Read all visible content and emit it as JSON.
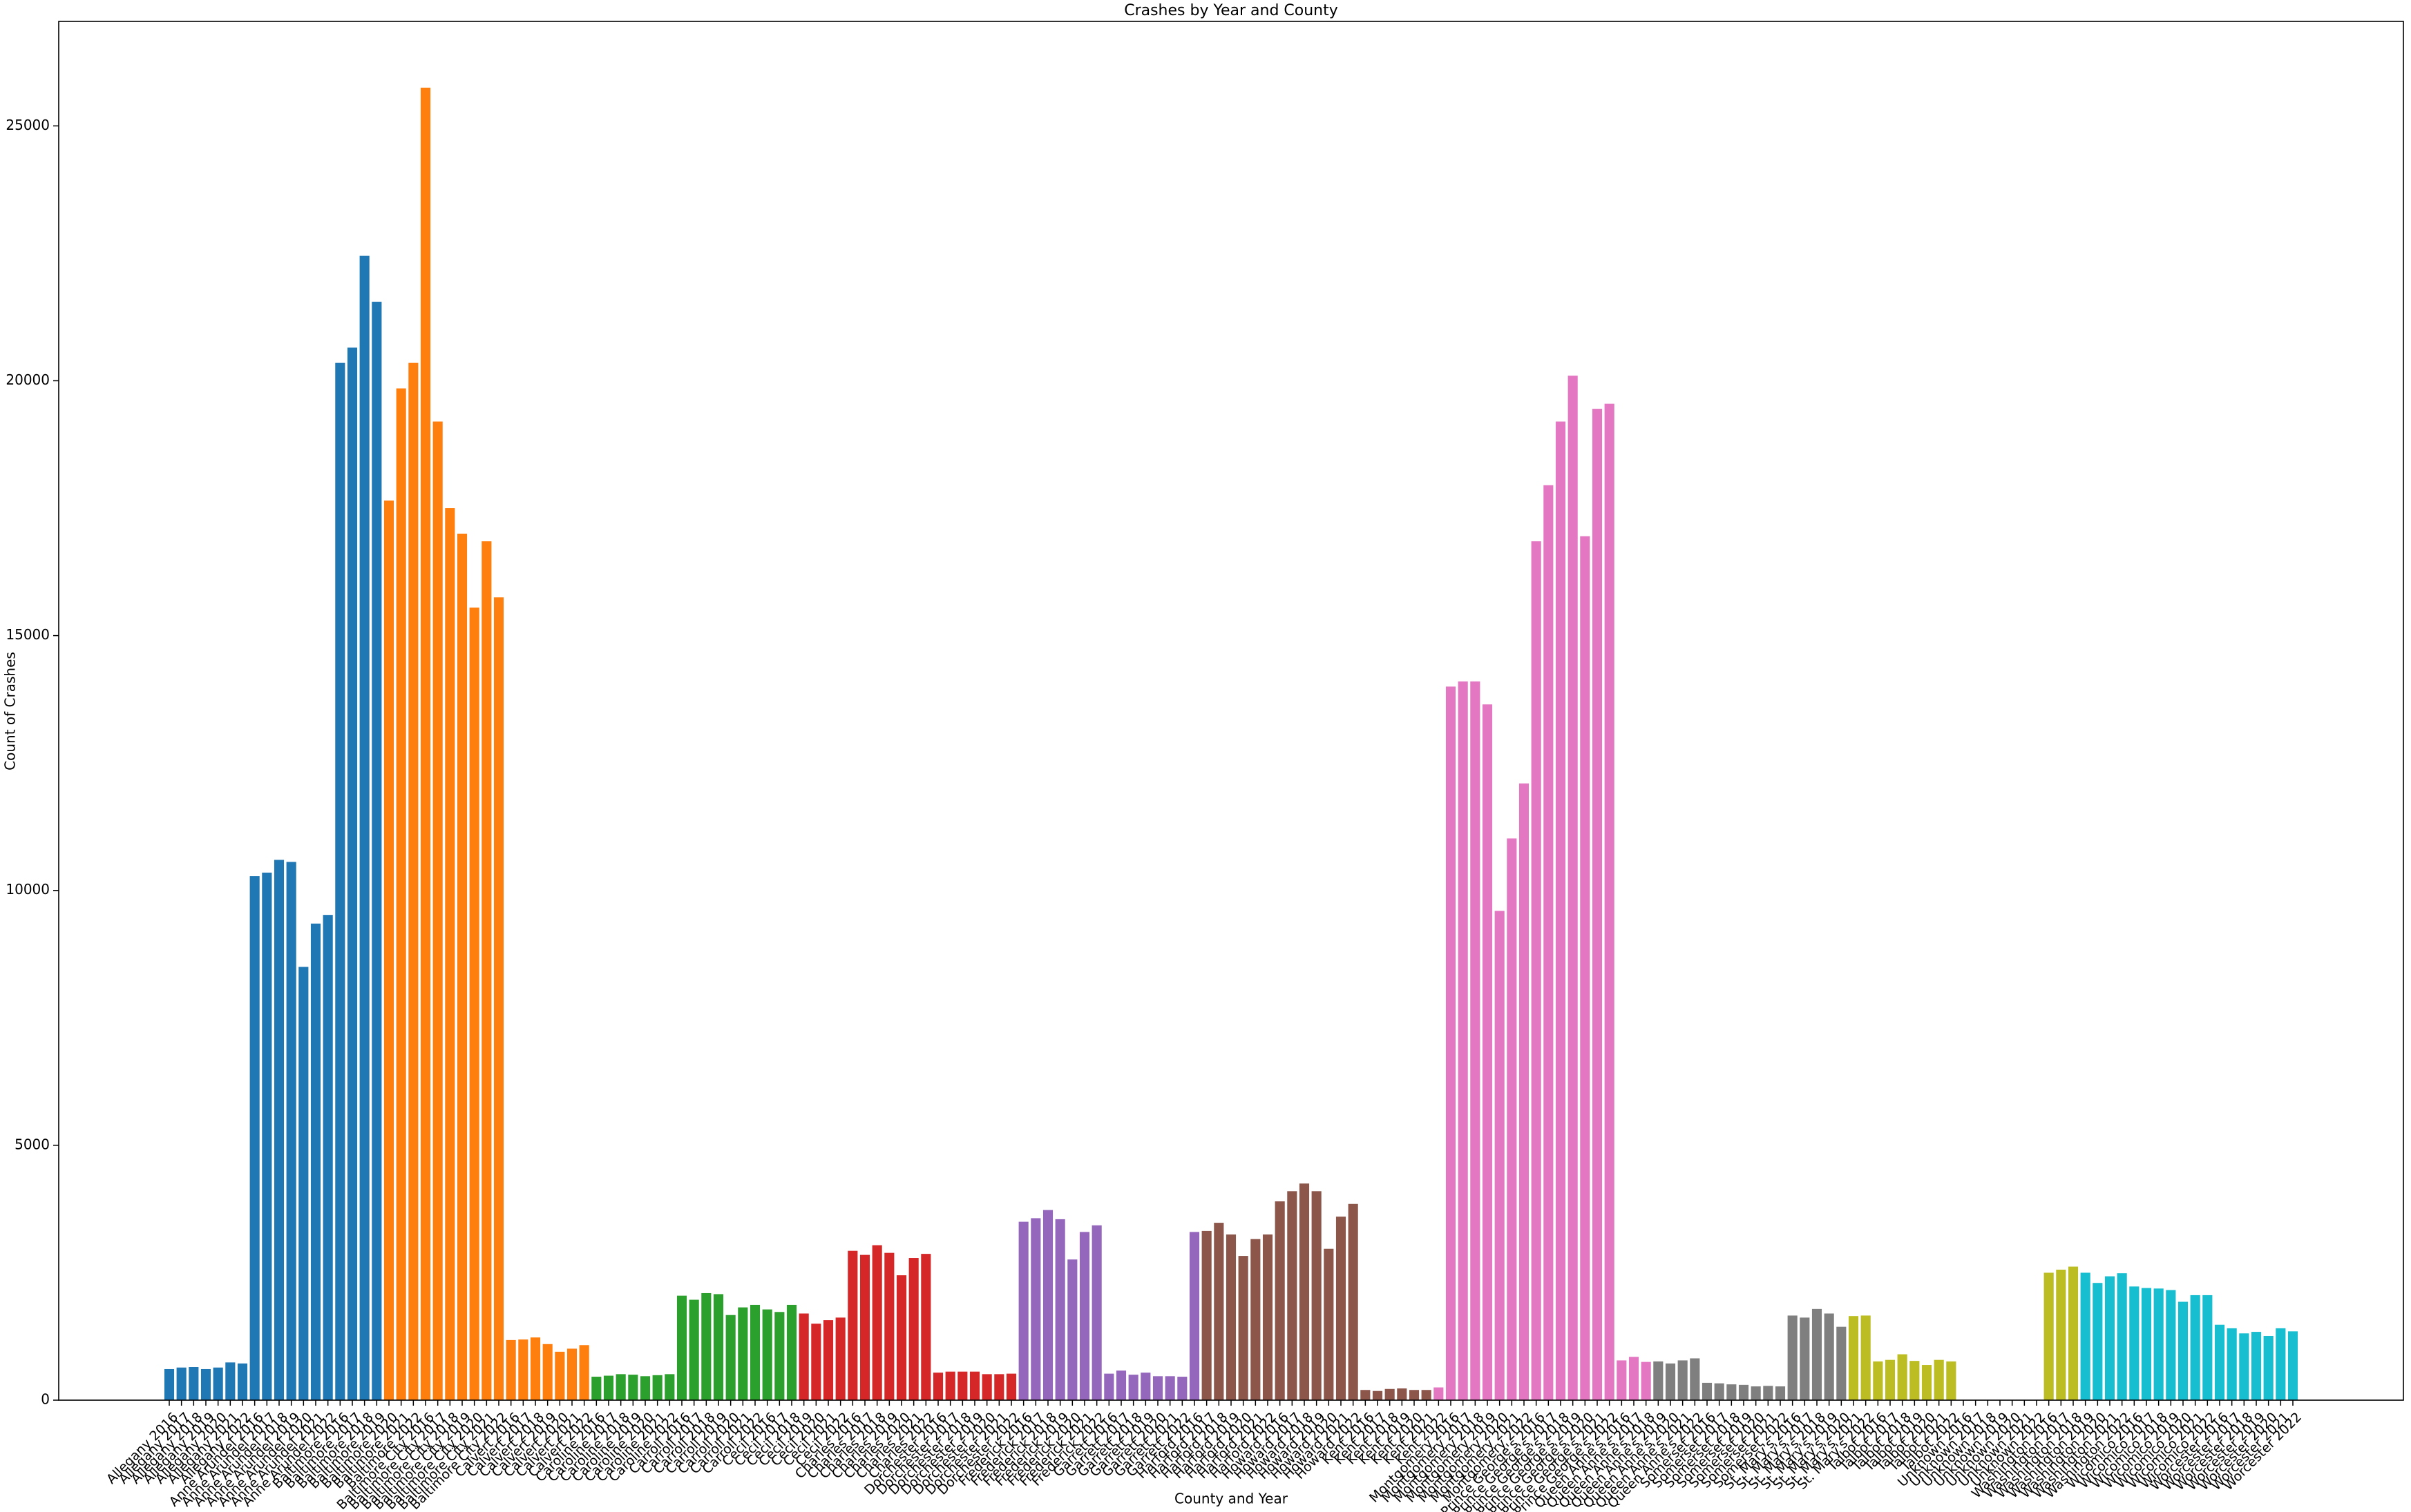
{
  "chart_data": {
    "type": "bar",
    "title": "Crashes by Year and County",
    "xlabel": "County and Year",
    "ylabel": "Count of Crashes",
    "categories": [
      "Allegany 2016",
      "Allegany 2017",
      "Allegany 2018",
      "Allegany 2019",
      "Allegany 2020",
      "Allegany 2021",
      "Allegany 2022",
      "Anne Arundel 2016",
      "Anne Arundel 2017",
      "Anne Arundel 2018",
      "Anne Arundel 2019",
      "Anne Arundel 2020",
      "Anne Arundel 2021",
      "Anne Arundel 2022",
      "Baltimore 2016",
      "Baltimore 2017",
      "Baltimore 2018",
      "Baltimore 2019",
      "Baltimore 2020",
      "Baltimore 2021",
      "Baltimore 2022",
      "Baltimore City 2016",
      "Baltimore City 2017",
      "Baltimore City 2018",
      "Baltimore City 2019",
      "Baltimore City 2020",
      "Baltimore City 2021",
      "Baltimore City 2022",
      "Calvert 2016",
      "Calvert 2017",
      "Calvert 2018",
      "Calvert 2019",
      "Calvert 2020",
      "Calvert 2021",
      "Calvert 2022",
      "Caroline 2016",
      "Caroline 2017",
      "Caroline 2018",
      "Caroline 2019",
      "Caroline 2020",
      "Caroline 2021",
      "Caroline 2022",
      "Carroll 2016",
      "Carroll 2017",
      "Carroll 2018",
      "Carroll 2019",
      "Carroll 2020",
      "Carroll 2021",
      "Carroll 2022",
      "Cecil 2016",
      "Cecil 2017",
      "Cecil 2018",
      "Cecil 2019",
      "Cecil 2020",
      "Cecil 2021",
      "Cecil 2022",
      "Charles 2016",
      "Charles 2017",
      "Charles 2018",
      "Charles 2019",
      "Charles 2020",
      "Charles 2021",
      "Charles 2022",
      "Dorchester 2016",
      "Dorchester 2017",
      "Dorchester 2018",
      "Dorchester 2019",
      "Dorchester 2020",
      "Dorchester 2021",
      "Dorchester 2022",
      "Frederick 2016",
      "Frederick 2017",
      "Frederick 2018",
      "Frederick 2019",
      "Frederick 2020",
      "Frederick 2021",
      "Frederick 2022",
      "Garrett 2016",
      "Garrett 2017",
      "Garrett 2018",
      "Garrett 2019",
      "Garrett 2020",
      "Garrett 2021",
      "Garrett 2022",
      "Harford 2016",
      "Harford 2017",
      "Harford 2018",
      "Harford 2019",
      "Harford 2020",
      "Harford 2021",
      "Harford 2022",
      "Howard 2016",
      "Howard 2017",
      "Howard 2018",
      "Howard 2019",
      "Howard 2020",
      "Howard 2021",
      "Howard 2022",
      "Kent 2016",
      "Kent 2017",
      "Kent 2018",
      "Kent 2019",
      "Kent 2020",
      "Kent 2021",
      "Kent 2022",
      "Montgomery 2016",
      "Montgomery 2017",
      "Montgomery 2018",
      "Montgomery 2019",
      "Montgomery 2020",
      "Montgomery 2021",
      "Montgomery 2022",
      "Prince George's 2016",
      "Prince George's 2017",
      "Prince George's 2018",
      "Prince George's 2019",
      "Prince George's 2020",
      "Prince George's 2021",
      "Prince George's 2022",
      "Queen Anne's 2016",
      "Queen Anne's 2017",
      "Queen Anne's 2018",
      "Queen Anne's 2019",
      "Queen Anne's 2020",
      "Queen Anne's 2021",
      "Queen Anne's 2022",
      "Somerset 2016",
      "Somerset 2017",
      "Somerset 2018",
      "Somerset 2019",
      "Somerset 2020",
      "Somerset 2021",
      "Somerset 2022",
      "St. Mary's 2016",
      "St. Mary's 2017",
      "St. Mary's 2018",
      "St. Mary's 2019",
      "St. Mary's 2020",
      "St. Mary's 2021",
      "St. Mary's 2022",
      "Talbot 2016",
      "Talbot 2017",
      "Talbot 2018",
      "Talbot 2019",
      "Talbot 2020",
      "Talbot 2021",
      "Talbot 2022",
      "Unknown 2016",
      "Unknown 2017",
      "Unknown 2018",
      "Unknown 2019",
      "Unknown 2020",
      "Unknown 2021",
      "Unknown 2022",
      "Washington 2016",
      "Washington 2017",
      "Washington 2018",
      "Washington 2019",
      "Washington 2020",
      "Washington 2021",
      "Washington 2022",
      "Wicomico 2016",
      "Wicomico 2017",
      "Wicomico 2018",
      "Wicomico 2019",
      "Wicomico 2020",
      "Wicomico 2021",
      "Wicomico 2022",
      "Worcester 2016",
      "Worcester 2017",
      "Worcester 2018",
      "Worcester 2019",
      "Worcester 2020",
      "Worcester 2021",
      "Worcester 2022"
    ],
    "values": [
      610,
      640,
      650,
      610,
      640,
      740,
      720,
      10280,
      10350,
      10600,
      10560,
      8500,
      9350,
      9520,
      20350,
      20650,
      22450,
      21550,
      17650,
      19850,
      20350,
      25750,
      19200,
      17500,
      17000,
      15550,
      16850,
      15750,
      1180,
      1190,
      1230,
      1100,
      950,
      1010,
      1080,
      460,
      480,
      510,
      500,
      470,
      490,
      510,
      2050,
      1970,
      2100,
      2080,
      1670,
      1820,
      1870,
      1780,
      1730,
      1870,
      1700,
      1500,
      1570,
      1620,
      2930,
      2850,
      3040,
      2890,
      2450,
      2790,
      2870,
      540,
      560,
      560,
      560,
      510,
      510,
      520,
      3500,
      3570,
      3730,
      3550,
      2760,
      3300,
      3430,
      520,
      580,
      500,
      540,
      470,
      470,
      460,
      3300,
      3320,
      3480,
      3250,
      2830,
      3160,
      3250,
      3900,
      4100,
      4250,
      4100,
      2970,
      3600,
      3850,
      200,
      180,
      220,
      230,
      200,
      200,
      250,
      14000,
      14100,
      14100,
      13650,
      9600,
      11020,
      12100,
      16850,
      17950,
      19200,
      20100,
      16950,
      19450,
      19550,
      780,
      850,
      750,
      760,
      720,
      780,
      820,
      340,
      330,
      310,
      300,
      270,
      280,
      270,
      1660,
      1620,
      1790,
      1700,
      1440,
      1650,
      1660,
      760,
      790,
      900,
      770,
      690,
      790,
      760,
      0,
      0,
      0,
      0,
      0,
      0,
      0,
      2500,
      2560,
      2620,
      2500,
      2300,
      2430,
      2490,
      2230,
      2200,
      2190,
      2160,
      1930,
      2060,
      2060,
      1480,
      1410,
      1310,
      1340,
      1260,
      1410,
      1350
    ],
    "colors": [
      "#1f77b4",
      "#1f77b4",
      "#1f77b4",
      "#1f77b4",
      "#1f77b4",
      "#1f77b4",
      "#1f77b4",
      "#1f77b4",
      "#1f77b4",
      "#1f77b4",
      "#1f77b4",
      "#1f77b4",
      "#1f77b4",
      "#1f77b4",
      "#1f77b4",
      "#1f77b4",
      "#1f77b4",
      "#1f77b4",
      "#ff7f0e",
      "#ff7f0e",
      "#ff7f0e",
      "#ff7f0e",
      "#ff7f0e",
      "#ff7f0e",
      "#ff7f0e",
      "#ff7f0e",
      "#ff7f0e",
      "#ff7f0e",
      "#ff7f0e",
      "#ff7f0e",
      "#ff7f0e",
      "#ff7f0e",
      "#ff7f0e",
      "#ff7f0e",
      "#ff7f0e",
      "#2ca02c",
      "#2ca02c",
      "#2ca02c",
      "#2ca02c",
      "#2ca02c",
      "#2ca02c",
      "#2ca02c",
      "#2ca02c",
      "#2ca02c",
      "#2ca02c",
      "#2ca02c",
      "#2ca02c",
      "#2ca02c",
      "#2ca02c",
      "#2ca02c",
      "#2ca02c",
      "#2ca02c",
      "#d62728",
      "#d62728",
      "#d62728",
      "#d62728",
      "#d62728",
      "#d62728",
      "#d62728",
      "#d62728",
      "#d62728",
      "#d62728",
      "#d62728",
      "#d62728",
      "#d62728",
      "#d62728",
      "#d62728",
      "#d62728",
      "#d62728",
      "#d62728",
      "#9467bd",
      "#9467bd",
      "#9467bd",
      "#9467bd",
      "#9467bd",
      "#9467bd",
      "#9467bd",
      "#9467bd",
      "#9467bd",
      "#9467bd",
      "#9467bd",
      "#9467bd",
      "#9467bd",
      "#9467bd",
      "#9467bd",
      "#8c564b",
      "#8c564b",
      "#8c564b",
      "#8c564b",
      "#8c564b",
      "#8c564b",
      "#8c564b",
      "#8c564b",
      "#8c564b",
      "#8c564b",
      "#8c564b",
      "#8c564b",
      "#8c564b",
      "#8c564b",
      "#8c564b",
      "#8c564b",
      "#8c564b",
      "#8c564b",
      "#8c564b",
      "#e377c2",
      "#e377c2",
      "#e377c2",
      "#e377c2",
      "#e377c2",
      "#e377c2",
      "#e377c2",
      "#e377c2",
      "#e377c2",
      "#e377c2",
      "#e377c2",
      "#e377c2",
      "#e377c2",
      "#e377c2",
      "#e377c2",
      "#e377c2",
      "#e377c2",
      "#e377c2",
      "#7f7f7f",
      "#7f7f7f",
      "#7f7f7f",
      "#7f7f7f",
      "#7f7f7f",
      "#7f7f7f",
      "#7f7f7f",
      "#7f7f7f",
      "#7f7f7f",
      "#7f7f7f",
      "#7f7f7f",
      "#7f7f7f",
      "#7f7f7f",
      "#7f7f7f",
      "#7f7f7f",
      "#7f7f7f",
      "#bcbd22",
      "#bcbd22",
      "#bcbd22",
      "#bcbd22",
      "#bcbd22",
      "#bcbd22",
      "#bcbd22",
      "#bcbd22",
      "#bcbd22",
      "#bcbd22",
      "#bcbd22",
      "#bcbd22",
      "#bcbd22",
      "#bcbd22",
      "#bcbd22",
      "#bcbd22",
      "#bcbd22",
      "#bcbd22",
      "#bcbd22",
      "#17becf",
      "#17becf",
      "#17becf",
      "#17becf",
      "#17becf",
      "#17becf",
      "#17becf",
      "#17becf",
      "#17becf",
      "#17becf",
      "#17becf",
      "#17becf",
      "#17becf",
      "#17becf",
      "#17becf",
      "#17becf",
      "#17becf",
      "#17becf"
    ],
    "ylim": [
      0,
      27050
    ],
    "yticks": [
      0,
      5000,
      10000,
      15000,
      20000,
      25000
    ],
    "grid": false
  }
}
